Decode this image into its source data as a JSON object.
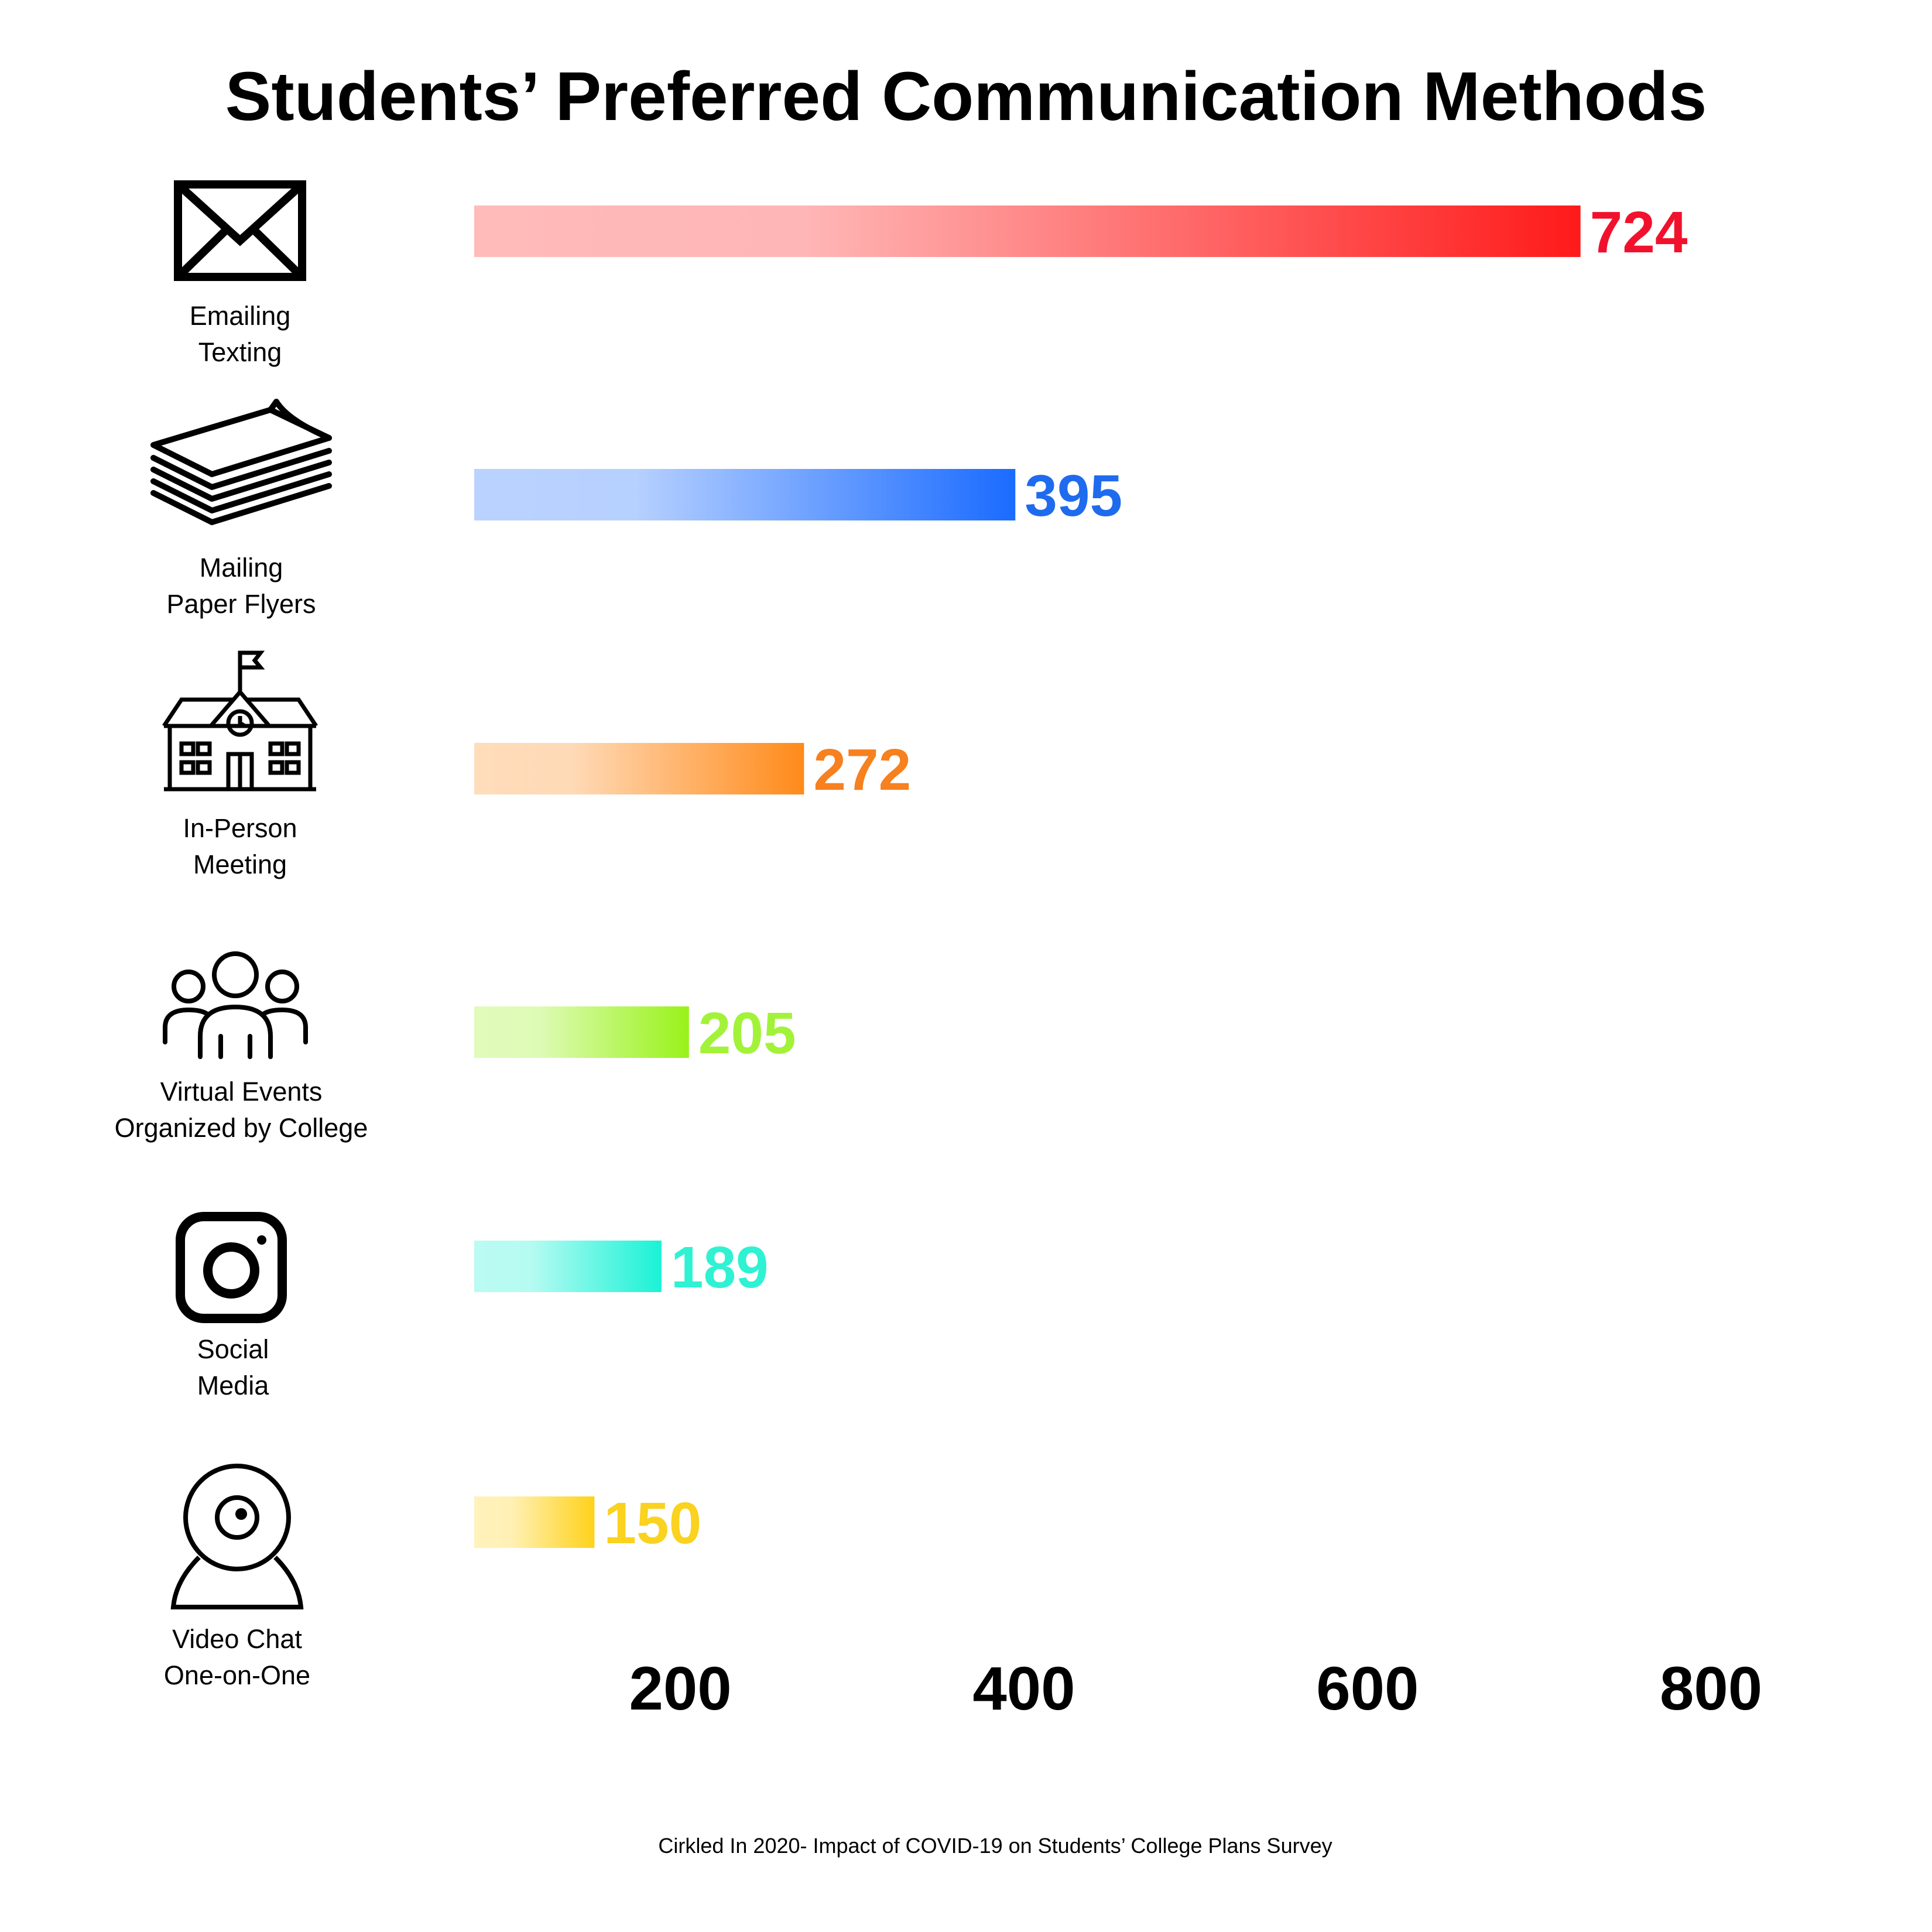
{
  "chart_data": {
    "type": "bar",
    "orientation": "horizontal",
    "title": "Students’ Preferred Communication Methods",
    "categories": [
      {
        "lines": [
          "Emailing",
          "Texting"
        ],
        "icon": "envelope-icon"
      },
      {
        "lines": [
          "Mailing",
          "Paper Flyers"
        ],
        "icon": "paper-stack-icon"
      },
      {
        "lines": [
          "In-Person",
          "Meeting"
        ],
        "icon": "school-building-icon"
      },
      {
        "lines": [
          "Virtual Events",
          "Organized by College"
        ],
        "icon": "group-people-icon"
      },
      {
        "lines": [
          "Social",
          "Media"
        ],
        "icon": "instagram-icon"
      },
      {
        "lines": [
          "Video Chat",
          "One-on-One"
        ],
        "icon": "webcam-icon"
      }
    ],
    "values": [
      724,
      395,
      272,
      205,
      189,
      150
    ],
    "value_labels": [
      "724",
      "395",
      "272",
      "205",
      "189",
      "150"
    ],
    "colors": [
      "#ff1a1a",
      "#1a6bff",
      "#ff8a1a",
      "#99f21a",
      "#1af2d6",
      "#ffd21a"
    ],
    "label_colors": [
      "#f2112d",
      "#1f6bee",
      "#f7801f",
      "#a3f23a",
      "#2ef2d2",
      "#fad21f"
    ],
    "x_ticks": [
      200,
      400,
      600,
      800
    ],
    "xlim": [
      80,
      840
    ],
    "xlabel": "",
    "ylabel": "",
    "grid": false
  },
  "source": "Cirkled In 2020- Impact of COVID-19 on Students’ College Plans Survey"
}
